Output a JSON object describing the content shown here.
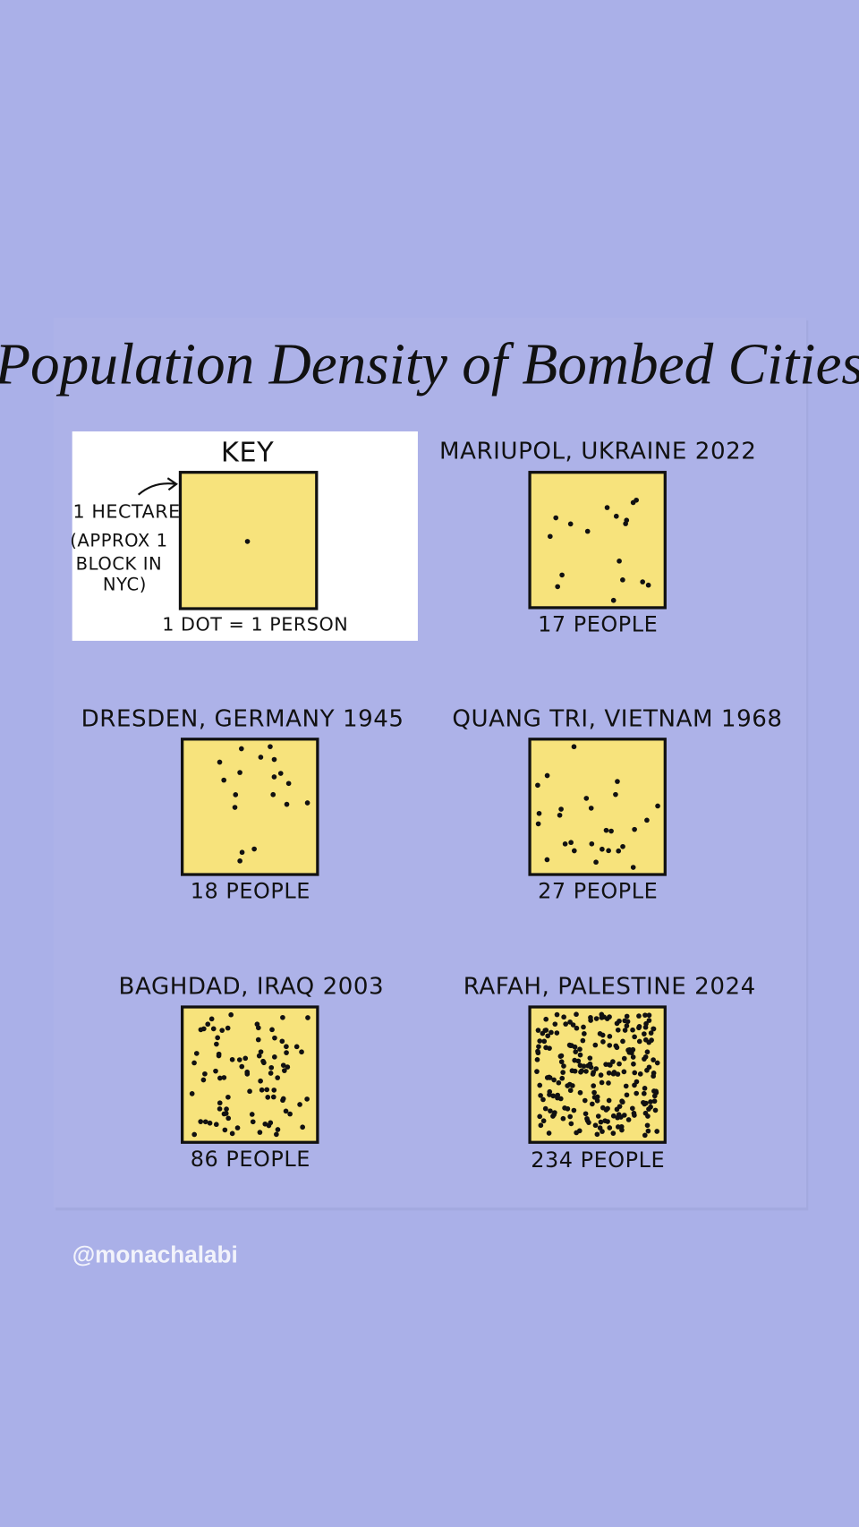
{
  "title": "Population Density of Bombed Cities",
  "key": {
    "heading": "KEY",
    "unit_label": "1 HECTARE",
    "note_lines": [
      "(APPROX 1",
      "BLOCK IN",
      "NYC)"
    ],
    "legend": "1 DOT = 1 PERSON"
  },
  "cities": [
    {
      "name": "MARIUPOL, UKRAINE 2022",
      "people": 17,
      "people_label": "17 PEOPLE"
    },
    {
      "name": "DRESDEN, GERMANY 1945",
      "people": 18,
      "people_label": "18 PEOPLE"
    },
    {
      "name": "QUANG TRI, VIETNAM 1968",
      "people": 27,
      "people_label": "27 PEOPLE"
    },
    {
      "name": "BAGHDAD, IRAQ 2003",
      "people": 86,
      "people_label": "86 PEOPLE"
    },
    {
      "name": "RAFAH, PALESTINE 2024",
      "people": 234,
      "people_label": "234 PEOPLE"
    }
  ],
  "handle": "@monachalabi"
}
